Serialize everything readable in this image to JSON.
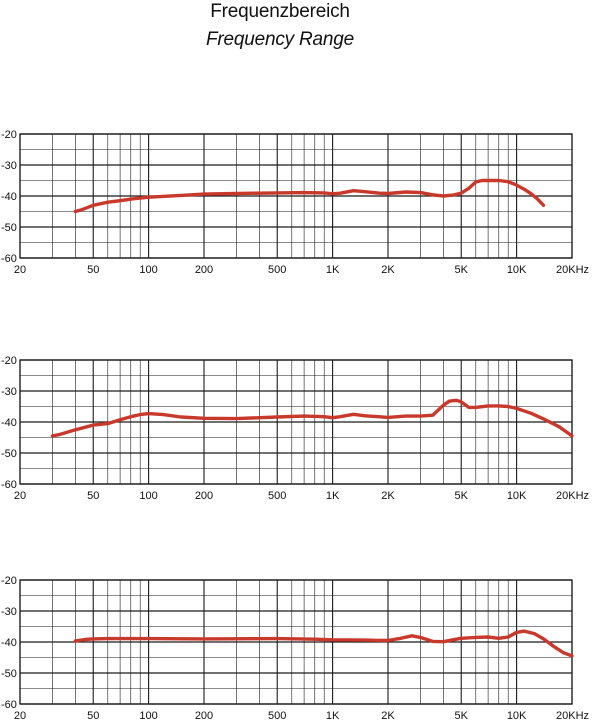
{
  "header": {
    "title": "Frequenzbereich",
    "subtitle": "Frequency Range"
  },
  "colors": {
    "curve": "#c8392b",
    "grid": "#1a1a1a"
  },
  "chart_data": [
    {
      "type": "line",
      "x_scale": "log",
      "xlim": [
        20,
        20000
      ],
      "ylim": [
        -60,
        -20
      ],
      "grid": true,
      "x_ticks": [
        {
          "value": 20,
          "label": "20"
        },
        {
          "value": 50,
          "label": "50"
        },
        {
          "value": 100,
          "label": "100"
        },
        {
          "value": 200,
          "label": "200"
        },
        {
          "value": 500,
          "label": "500"
        },
        {
          "value": 1000,
          "label": "1K"
        },
        {
          "value": 2000,
          "label": "2K"
        },
        {
          "value": 5000,
          "label": "5K"
        },
        {
          "value": 10000,
          "label": "10K"
        },
        {
          "value": 20000,
          "label": "20KHz"
        }
      ],
      "y_ticks": [
        {
          "value": -20,
          "label": "-20"
        },
        {
          "value": -30,
          "label": "-30"
        },
        {
          "value": -40,
          "label": "-40"
        },
        {
          "value": -50,
          "label": "-50"
        },
        {
          "value": -60,
          "label": "-60"
        }
      ],
      "series": [
        {
          "x": [
            40,
            43,
            50,
            60,
            70,
            80,
            100,
            150,
            200,
            300,
            500,
            700,
            900,
            1000,
            1100,
            1300,
            1500,
            1800,
            2000,
            2500,
            3000,
            3500,
            4000,
            4500,
            5000,
            5500,
            6000,
            6500,
            7000,
            8000,
            9000,
            10000,
            11000,
            12000,
            13000,
            14000
          ],
          "y": [
            -45,
            -44.5,
            -43,
            -42,
            -41.5,
            -41,
            -40.4,
            -39.8,
            -39.4,
            -39.2,
            -39,
            -38.9,
            -39,
            -39.3,
            -39.1,
            -38.3,
            -38.6,
            -39.1,
            -39.2,
            -38.7,
            -38.9,
            -39.6,
            -40,
            -39.7,
            -39.1,
            -37.5,
            -35.5,
            -35,
            -35,
            -35,
            -35.4,
            -36.5,
            -37.8,
            -39.3,
            -41,
            -43
          ]
        }
      ]
    },
    {
      "type": "line",
      "x_scale": "log",
      "xlim": [
        20,
        20000
      ],
      "ylim": [
        -60,
        -20
      ],
      "grid": true,
      "x_ticks": [
        {
          "value": 20,
          "label": "20"
        },
        {
          "value": 50,
          "label": "50"
        },
        {
          "value": 100,
          "label": "100"
        },
        {
          "value": 200,
          "label": "200"
        },
        {
          "value": 500,
          "label": "500"
        },
        {
          "value": 1000,
          "label": "1K"
        },
        {
          "value": 2000,
          "label": "2K"
        },
        {
          "value": 5000,
          "label": "5K"
        },
        {
          "value": 10000,
          "label": "10K"
        },
        {
          "value": 20000,
          "label": "20KHz"
        }
      ],
      "y_ticks": [
        {
          "value": -20,
          "label": "-20"
        },
        {
          "value": -30,
          "label": "-30"
        },
        {
          "value": -40,
          "label": "-40"
        },
        {
          "value": -50,
          "label": "-50"
        },
        {
          "value": -60,
          "label": "-60"
        }
      ],
      "series": [
        {
          "x": [
            30,
            33,
            40,
            50,
            60,
            70,
            80,
            90,
            100,
            120,
            150,
            200,
            300,
            500,
            700,
            900,
            1000,
            1100,
            1300,
            1500,
            2000,
            2500,
            3000,
            3500,
            4000,
            4300,
            4700,
            5000,
            5500,
            6000,
            7000,
            8000,
            9000,
            10000,
            12000,
            14000,
            17000,
            20000
          ],
          "y": [
            -44.5,
            -44,
            -42.5,
            -41,
            -40.5,
            -39.3,
            -38.3,
            -37.6,
            -37.3,
            -37.6,
            -38.4,
            -38.8,
            -38.9,
            -38.4,
            -38.1,
            -38.3,
            -38.6,
            -38.3,
            -37.5,
            -38,
            -38.5,
            -38.1,
            -38.1,
            -37.8,
            -34.6,
            -33.3,
            -33,
            -33.5,
            -35.3,
            -35.3,
            -34.8,
            -34.8,
            -35,
            -35.6,
            -37.2,
            -39,
            -41.5,
            -44.5
          ]
        }
      ]
    },
    {
      "type": "line",
      "x_scale": "log",
      "xlim": [
        20,
        20000
      ],
      "ylim": [
        -60,
        -20
      ],
      "grid": true,
      "x_ticks": [
        {
          "value": 20,
          "label": "20"
        },
        {
          "value": 50,
          "label": "50"
        },
        {
          "value": 100,
          "label": "100"
        },
        {
          "value": 200,
          "label": "200"
        },
        {
          "value": 500,
          "label": "500"
        },
        {
          "value": 1000,
          "label": "1K"
        },
        {
          "value": 2000,
          "label": "2K"
        },
        {
          "value": 5000,
          "label": "5K"
        },
        {
          "value": 10000,
          "label": "10K"
        },
        {
          "value": 20000,
          "label": "20KHz"
        }
      ],
      "y_ticks": [
        {
          "value": -20,
          "label": "-20"
        },
        {
          "value": -30,
          "label": "-30"
        },
        {
          "value": -40,
          "label": "-40"
        },
        {
          "value": -50,
          "label": "-50"
        },
        {
          "value": -60,
          "label": "-60"
        }
      ],
      "series": [
        {
          "x": [
            40,
            45,
            50,
            60,
            80,
            100,
            200,
            500,
            800,
            1000,
            1500,
            2000,
            2300,
            2700,
            3000,
            3500,
            4000,
            4500,
            5000,
            6000,
            7000,
            8000,
            9000,
            10000,
            11000,
            12500,
            14000,
            16000,
            18000,
            20000
          ],
          "y": [
            -39.7,
            -39.2,
            -39,
            -38.9,
            -38.9,
            -38.9,
            -39,
            -38.9,
            -39.1,
            -39.3,
            -39.4,
            -39.5,
            -38.9,
            -38,
            -38.5,
            -39.8,
            -39.9,
            -39.3,
            -38.8,
            -38.5,
            -38.4,
            -38.8,
            -38.4,
            -36.9,
            -36.5,
            -37.3,
            -39,
            -41.5,
            -43.5,
            -44.5
          ]
        }
      ]
    }
  ]
}
